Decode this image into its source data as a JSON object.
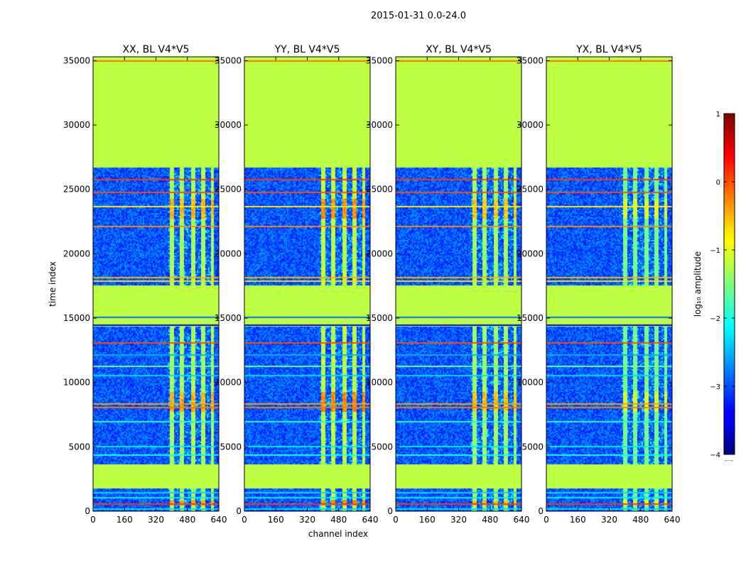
{
  "chart_data": {
    "type": "heatmap",
    "suptitle": "2015-01-31 0.0-24.0",
    "xlabel": "channel index",
    "ylabel": "time index",
    "xlim": [
      0,
      640
    ],
    "ylim": [
      0,
      35300
    ],
    "xticks": [
      "0",
      "160",
      "320",
      "480",
      "640"
    ],
    "yticks": [
      "0",
      "5000",
      "10000",
      "15000",
      "20000",
      "25000",
      "30000",
      "35000"
    ],
    "panels": [
      {
        "title": "XX, BL V4*V5",
        "signal_strength": 0.85
      },
      {
        "title": "YY, BL V4*V5",
        "signal_strength": 0.95
      },
      {
        "title": "XY, BL V4*V5",
        "signal_strength": 0.8
      },
      {
        "title": "YX, BL V4*V5",
        "signal_strength": 0.55
      }
    ],
    "flagged_value_log10": -1.2,
    "flagged_time_ranges": [
      [
        26700,
        35300
      ],
      [
        14450,
        17600
      ],
      [
        1800,
        3650
      ]
    ],
    "rfi_channel_ranges": [
      [
        390,
        410
      ],
      [
        440,
        460
      ],
      [
        495,
        515
      ],
      [
        545,
        565
      ],
      [
        595,
        610
      ]
    ],
    "bright_time_ranges": [
      [
        22800,
        24300
      ],
      [
        7800,
        9300
      ],
      [
        500,
        900
      ]
    ],
    "colorbar": {
      "label": "log₁₀ amplitude",
      "min": -4,
      "max": 1,
      "ticks": [
        "1",
        "0",
        "−1",
        "−2",
        "−3",
        "−4"
      ],
      "colormap": "jet"
    }
  }
}
